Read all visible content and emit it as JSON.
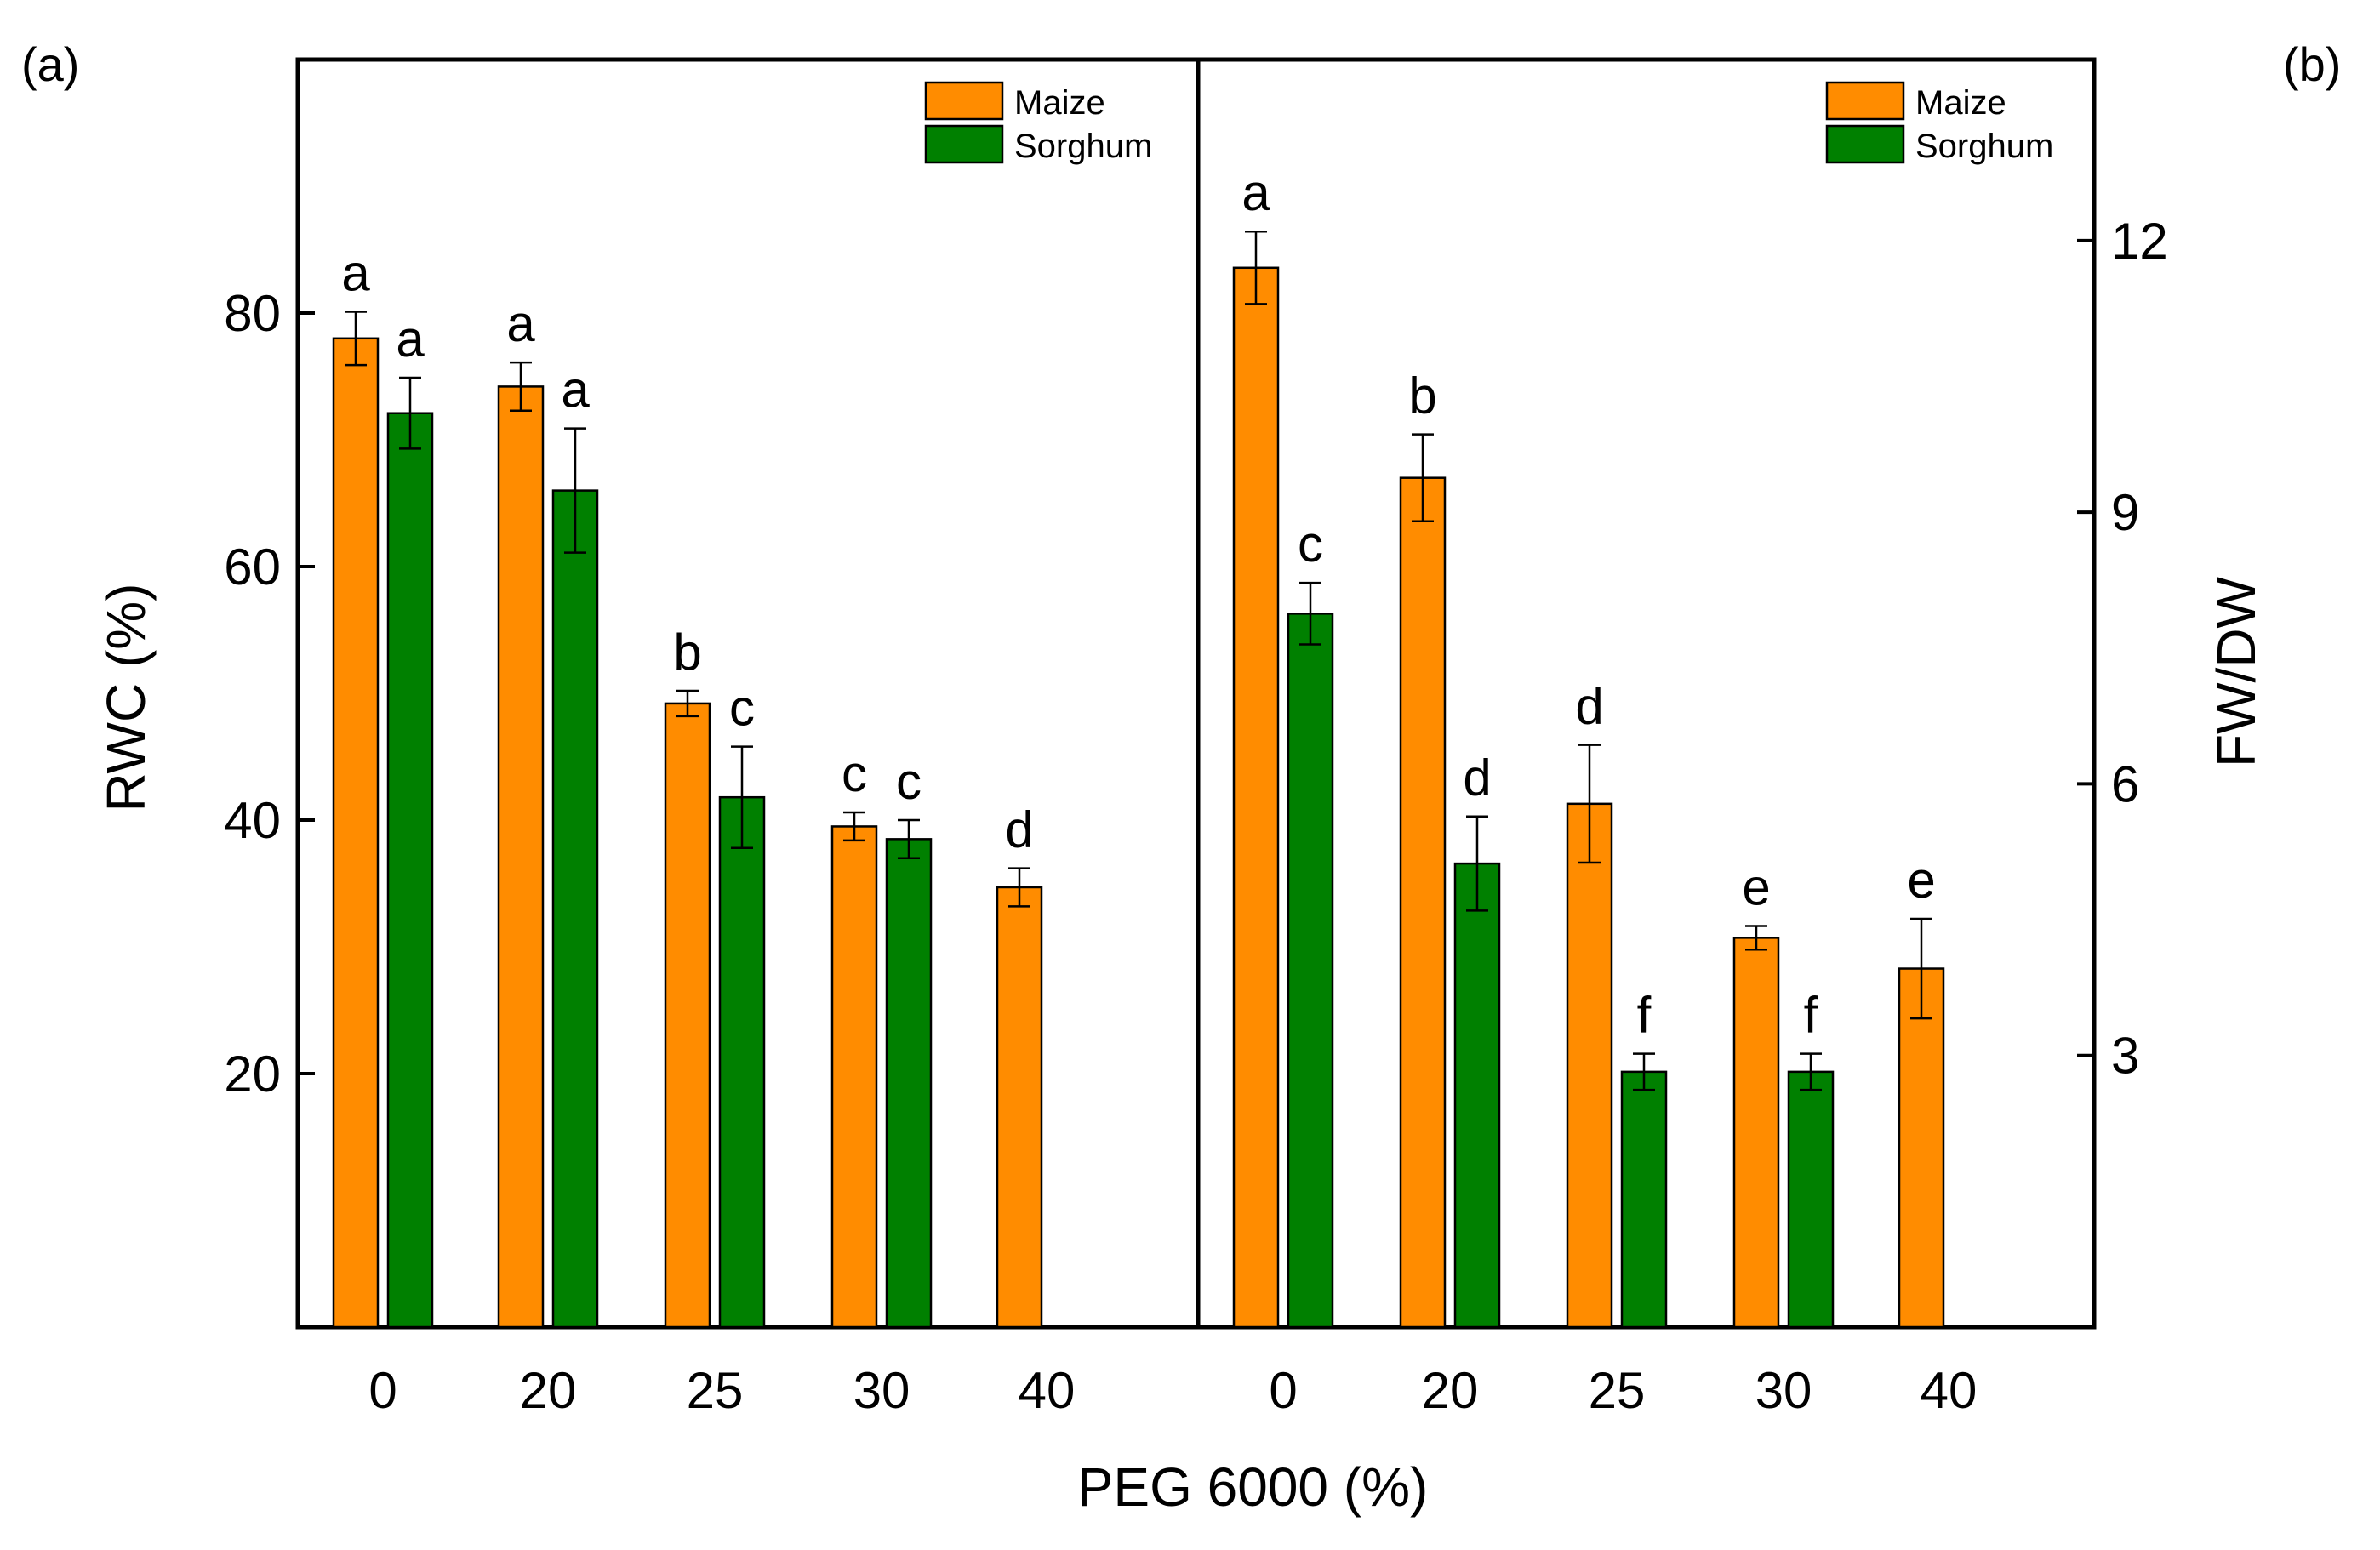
{
  "figure": {
    "xlabel": "PEG 6000 (%)",
    "colors": {
      "maize": "#FF8C00",
      "sorghum": "#008000",
      "axis": "#000000"
    }
  },
  "chart_data": [
    {
      "type": "bar",
      "panel_label": "(a)",
      "ylabel": "RWC (%)",
      "ylim": [
        0,
        100
      ],
      "yticks": [
        20,
        40,
        60,
        80
      ],
      "y_axis_side": "left",
      "categories": [
        "0",
        "20",
        "25",
        "30",
        "40"
      ],
      "legend": {
        "placement": "top-right",
        "entries": [
          "Maize",
          "Sorghum"
        ]
      },
      "series": [
        {
          "name": "Maize",
          "color": "#FF8C00",
          "values": [
            78.0,
            74.2,
            49.2,
            39.5,
            34.7
          ],
          "errors": [
            2.1,
            1.9,
            1.0,
            1.1,
            1.5
          ],
          "letters": [
            "a",
            "a",
            "b",
            "c",
            "d"
          ]
        },
        {
          "name": "Sorghum",
          "color": "#008000",
          "values": [
            72.1,
            66.0,
            41.8,
            38.5,
            null
          ],
          "errors": [
            2.8,
            4.9,
            4.0,
            1.5,
            null
          ],
          "letters": [
            "a",
            "a",
            "c",
            "c",
            null
          ]
        }
      ]
    },
    {
      "type": "bar",
      "panel_label": "(b)",
      "ylabel": "FW/DW",
      "ylim": [
        0,
        14
      ],
      "yticks": [
        3,
        6,
        9,
        12
      ],
      "y_axis_side": "right",
      "categories": [
        "0",
        "20",
        "25",
        "30",
        "40"
      ],
      "legend": {
        "placement": "top-right",
        "entries": [
          "Maize",
          "Sorghum"
        ]
      },
      "series": [
        {
          "name": "Maize",
          "color": "#FF8C00",
          "values": [
            11.7,
            9.38,
            5.78,
            4.3,
            3.96
          ],
          "errors": [
            0.4,
            0.48,
            0.65,
            0.13,
            0.55
          ],
          "letters": [
            "a",
            "b",
            "d",
            "e",
            "e"
          ]
        },
        {
          "name": "Sorghum",
          "color": "#008000",
          "values": [
            7.88,
            5.12,
            2.82,
            2.82,
            null
          ],
          "errors": [
            0.34,
            0.52,
            0.2,
            0.2,
            null
          ],
          "letters": [
            "c",
            "d",
            "f",
            "f",
            null
          ]
        }
      ]
    }
  ]
}
